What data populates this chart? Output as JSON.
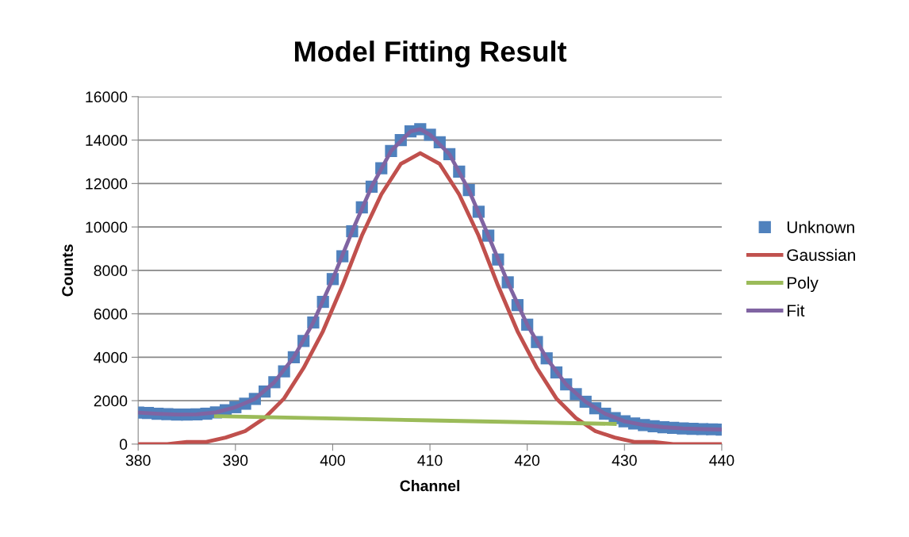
{
  "chart_data": {
    "type": "scatter",
    "title": "Model Fitting Result",
    "xlabel": "Channel",
    "ylabel": "Counts",
    "xlim": [
      380,
      440
    ],
    "xticks": [
      380,
      390,
      400,
      410,
      420,
      430,
      440
    ],
    "ylim": [
      0,
      16000
    ],
    "yticks": [
      0,
      2000,
      4000,
      6000,
      8000,
      10000,
      12000,
      14000,
      16000
    ],
    "grid": "y",
    "legend": "right",
    "series": [
      {
        "name": "Unknown",
        "marker": "square",
        "color": "#4f81bd",
        "x": [
          380,
          381,
          382,
          383,
          384,
          385,
          386,
          387,
          388,
          389,
          390,
          391,
          392,
          393,
          394,
          395,
          396,
          397,
          398,
          399,
          400,
          401,
          402,
          403,
          404,
          405,
          406,
          407,
          408,
          409,
          410,
          411,
          412,
          413,
          414,
          415,
          416,
          417,
          418,
          419,
          420,
          421,
          422,
          423,
          424,
          425,
          426,
          427,
          428,
          429,
          430,
          431,
          432,
          433,
          434,
          435,
          436,
          437,
          438,
          439,
          440
        ],
        "values": [
          1450,
          1430,
          1400,
          1380,
          1360,
          1360,
          1370,
          1400,
          1460,
          1560,
          1700,
          1860,
          2080,
          2420,
          2850,
          3350,
          4000,
          4750,
          5600,
          6550,
          7600,
          8650,
          9800,
          10900,
          11850,
          12700,
          13500,
          14000,
          14400,
          14500,
          14250,
          13900,
          13350,
          12550,
          11700,
          10700,
          9600,
          8500,
          7450,
          6400,
          5500,
          4700,
          3950,
          3300,
          2750,
          2300,
          1950,
          1650,
          1400,
          1200,
          1050,
          950,
          880,
          820,
          780,
          750,
          720,
          700,
          690,
          680,
          670
        ]
      },
      {
        "name": "Gaussian",
        "type": "line",
        "color": "#c0504d",
        "x": [
          380,
          381,
          383,
          385,
          387,
          389,
          391,
          393,
          395,
          397,
          399,
          401,
          403,
          405,
          407,
          409,
          411,
          413,
          415,
          417,
          419,
          421,
          423,
          425,
          427,
          429,
          431,
          433,
          435,
          437,
          439,
          440
        ],
        "values": [
          0,
          0,
          0,
          100,
          100,
          300,
          600,
          1200,
          2100,
          3500,
          5200,
          7300,
          9600,
          11500,
          12900,
          13400,
          12900,
          11500,
          9600,
          7300,
          5200,
          3500,
          2100,
          1200,
          600,
          300,
          100,
          100,
          0,
          0,
          0,
          0
        ]
      },
      {
        "name": "Poly",
        "type": "line",
        "color": "#9bbb59",
        "x": [
          388,
          410,
          429
        ],
        "values": [
          1290,
          1090,
          930
        ]
      },
      {
        "name": "Fit",
        "type": "line",
        "color": "#8064a2",
        "x": [
          380,
          382,
          384,
          386,
          388,
          390,
          392,
          394,
          396,
          398,
          400,
          402,
          404,
          406,
          408,
          409,
          410,
          412,
          414,
          416,
          418,
          420,
          422,
          424,
          426,
          428,
          430,
          432,
          434,
          436,
          438,
          440
        ],
        "values": [
          1450,
          1400,
          1360,
          1370,
          1460,
          1700,
          2080,
          2850,
          4000,
          5600,
          7600,
          9800,
          11850,
          13500,
          14400,
          14500,
          14250,
          13350,
          11700,
          9600,
          7450,
          5500,
          3950,
          2750,
          1950,
          1400,
          1050,
          880,
          780,
          720,
          690,
          670
        ]
      }
    ]
  }
}
